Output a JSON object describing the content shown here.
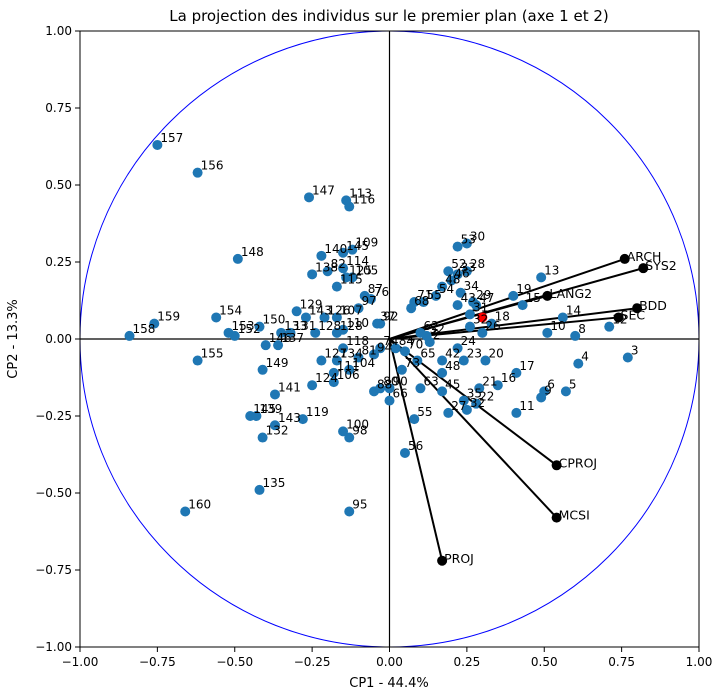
{
  "chart_data": {
    "type": "scatter",
    "title": "La projection des individus sur le premier plan (axe 1 et 2)",
    "xlabel": "CP1 - 44.4%",
    "ylabel": "CP2 - 13.3%",
    "xlim": [
      -1.0,
      1.0
    ],
    "ylim": [
      -1.0,
      1.0
    ],
    "xticks": [
      "−1.00",
      "−0.75",
      "−0.50",
      "−0.25",
      "0.00",
      "0.25",
      "0.50",
      "0.75",
      "1.00"
    ],
    "yticks": [
      "−1.00",
      "−0.75",
      "−0.50",
      "−0.25",
      "0.00",
      "0.25",
      "0.50",
      "0.75",
      "1.00"
    ],
    "tick_values": [
      -1.0,
      -0.75,
      -0.5,
      -0.25,
      0.0,
      0.25,
      0.5,
      0.75,
      1.0
    ],
    "grid": false,
    "circle": {
      "radius": 1.0,
      "color": "#0000ff"
    },
    "colors": {
      "points": "#1f77b4",
      "centroid": "#ff0000",
      "arrows": "#000000",
      "axes": "#000000"
    },
    "points": [
      {
        "label": "157",
        "x": -0.75,
        "y": 0.63
      },
      {
        "label": "156",
        "x": -0.62,
        "y": 0.54
      },
      {
        "label": "147",
        "x": -0.26,
        "y": 0.46
      },
      {
        "label": "113",
        "x": -0.14,
        "y": 0.45
      },
      {
        "label": "116",
        "x": -0.13,
        "y": 0.43
      },
      {
        "label": "148",
        "x": -0.49,
        "y": 0.26
      },
      {
        "label": "140",
        "x": -0.22,
        "y": 0.27
      },
      {
        "label": "145",
        "x": -0.15,
        "y": 0.28
      },
      {
        "label": "109",
        "x": -0.12,
        "y": 0.29
      },
      {
        "label": "138",
        "x": -0.25,
        "y": 0.21
      },
      {
        "label": "82",
        "x": -0.2,
        "y": 0.22
      },
      {
        "label": "114",
        "x": -0.15,
        "y": 0.23
      },
      {
        "label": "125",
        "x": -0.14,
        "y": 0.2
      },
      {
        "label": "105",
        "x": -0.12,
        "y": 0.2
      },
      {
        "label": "115",
        "x": -0.17,
        "y": 0.17
      },
      {
        "label": "87",
        "x": -0.08,
        "y": 0.14
      },
      {
        "label": "76",
        "x": -0.06,
        "y": 0.13
      },
      {
        "label": "97",
        "x": -0.1,
        "y": 0.1
      },
      {
        "label": "159",
        "x": -0.76,
        "y": 0.05
      },
      {
        "label": "158",
        "x": -0.84,
        "y": 0.01
      },
      {
        "label": "154",
        "x": -0.56,
        "y": 0.07
      },
      {
        "label": "153",
        "x": -0.52,
        "y": 0.02
      },
      {
        "label": "152",
        "x": -0.5,
        "y": 0.01
      },
      {
        "label": "150",
        "x": -0.42,
        "y": 0.04
      },
      {
        "label": "129",
        "x": -0.3,
        "y": 0.09
      },
      {
        "label": "133",
        "x": -0.35,
        "y": 0.02
      },
      {
        "label": "131",
        "x": -0.32,
        "y": 0.02
      },
      {
        "label": "143",
        "x": -0.27,
        "y": 0.07
      },
      {
        "label": "126",
        "x": -0.21,
        "y": 0.07
      },
      {
        "label": "128",
        "x": -0.24,
        "y": 0.02
      },
      {
        "label": "110",
        "x": -0.15,
        "y": 0.03
      },
      {
        "label": "107",
        "x": -0.17,
        "y": 0.07
      },
      {
        "label": "92",
        "x": -0.03,
        "y": 0.05
      },
      {
        "label": "146",
        "x": -0.4,
        "y": -0.02
      },
      {
        "label": "137",
        "x": -0.36,
        "y": -0.02
      },
      {
        "label": "155",
        "x": -0.62,
        "y": -0.07
      },
      {
        "label": "149",
        "x": -0.41,
        "y": -0.1
      },
      {
        "label": "128",
        "x": -0.17,
        "y": 0.02
      },
      {
        "label": "118",
        "x": -0.15,
        "y": -0.03
      },
      {
        "label": "127",
        "x": -0.22,
        "y": -0.07
      },
      {
        "label": "134",
        "x": -0.17,
        "y": -0.07
      },
      {
        "label": "81",
        "x": -0.1,
        "y": -0.06
      },
      {
        "label": "111",
        "x": -0.18,
        "y": -0.11
      },
      {
        "label": "104",
        "x": -0.13,
        "y": -0.1
      },
      {
        "label": "106",
        "x": -0.18,
        "y": -0.14
      },
      {
        "label": "124",
        "x": -0.25,
        "y": -0.15
      },
      {
        "label": "141",
        "x": -0.37,
        "y": -0.18
      },
      {
        "label": "145",
        "x": -0.45,
        "y": -0.25
      },
      {
        "label": "139",
        "x": -0.43,
        "y": -0.25
      },
      {
        "label": "143",
        "x": -0.37,
        "y": -0.28
      },
      {
        "label": "132",
        "x": -0.41,
        "y": -0.32
      },
      {
        "label": "119",
        "x": -0.28,
        "y": -0.26
      },
      {
        "label": "100",
        "x": -0.15,
        "y": -0.3
      },
      {
        "label": "98",
        "x": -0.13,
        "y": -0.32
      },
      {
        "label": "135",
        "x": -0.42,
        "y": -0.49
      },
      {
        "label": "160",
        "x": -0.66,
        "y": -0.56
      },
      {
        "label": "95",
        "x": -0.13,
        "y": -0.56
      },
      {
        "label": "88",
        "x": -0.05,
        "y": -0.17
      },
      {
        "label": "80",
        "x": -0.03,
        "y": -0.16
      },
      {
        "label": "90",
        "x": 0.0,
        "y": -0.16
      },
      {
        "label": "66",
        "x": 0.0,
        "y": -0.2
      },
      {
        "label": "55",
        "x": 0.08,
        "y": -0.26
      },
      {
        "label": "56",
        "x": 0.05,
        "y": -0.37
      },
      {
        "label": "63",
        "x": 0.1,
        "y": -0.16
      },
      {
        "label": "65",
        "x": 0.09,
        "y": -0.07
      },
      {
        "label": "73",
        "x": 0.04,
        "y": -0.1
      },
      {
        "label": "70",
        "x": 0.05,
        "y": -0.04
      },
      {
        "label": "53",
        "x": 0.22,
        "y": 0.3
      },
      {
        "label": "30",
        "x": 0.25,
        "y": 0.31
      },
      {
        "label": "52",
        "x": 0.19,
        "y": 0.22
      },
      {
        "label": "33",
        "x": 0.22,
        "y": 0.21
      },
      {
        "label": "28",
        "x": 0.25,
        "y": 0.22
      },
      {
        "label": "46",
        "x": 0.2,
        "y": 0.19
      },
      {
        "label": "48",
        "x": 0.17,
        "y": 0.17
      },
      {
        "label": "54",
        "x": 0.15,
        "y": 0.14
      },
      {
        "label": "34",
        "x": 0.23,
        "y": 0.15
      },
      {
        "label": "29",
        "x": 0.27,
        "y": 0.12
      },
      {
        "label": "19",
        "x": 0.4,
        "y": 0.14
      },
      {
        "label": "13",
        "x": 0.49,
        "y": 0.2
      },
      {
        "label": "15",
        "x": 0.43,
        "y": 0.11
      },
      {
        "label": "14",
        "x": 0.56,
        "y": 0.07
      },
      {
        "label": "10",
        "x": 0.51,
        "y": 0.02
      },
      {
        "label": "8",
        "x": 0.6,
        "y": 0.01
      },
      {
        "label": "12",
        "x": 0.71,
        "y": 0.04
      },
      {
        "label": "4",
        "x": 0.61,
        "y": -0.08
      },
      {
        "label": "3",
        "x": 0.77,
        "y": -0.06
      },
      {
        "label": "6",
        "x": 0.5,
        "y": -0.17
      },
      {
        "label": "9",
        "x": 0.49,
        "y": -0.19
      },
      {
        "label": "5",
        "x": 0.57,
        "y": -0.17
      },
      {
        "label": "17",
        "x": 0.41,
        "y": -0.11
      },
      {
        "label": "16",
        "x": 0.35,
        "y": -0.15
      },
      {
        "label": "21",
        "x": 0.29,
        "y": -0.16
      },
      {
        "label": "11",
        "x": 0.41,
        "y": -0.24
      },
      {
        "label": "22",
        "x": 0.28,
        "y": -0.21
      },
      {
        "label": "35",
        "x": 0.24,
        "y": -0.2
      },
      {
        "label": "32",
        "x": 0.25,
        "y": -0.23
      },
      {
        "label": "27",
        "x": 0.19,
        "y": -0.24
      },
      {
        "label": "45",
        "x": 0.17,
        "y": -0.17
      },
      {
        "label": "48",
        "x": 0.17,
        "y": -0.11
      },
      {
        "label": "42",
        "x": 0.17,
        "y": -0.07
      },
      {
        "label": "24",
        "x": 0.22,
        "y": -0.03
      },
      {
        "label": "23",
        "x": 0.24,
        "y": -0.07
      },
      {
        "label": "20",
        "x": 0.31,
        "y": -0.07
      },
      {
        "label": "26",
        "x": 0.3,
        "y": 0.02
      },
      {
        "label": "18",
        "x": 0.33,
        "y": 0.05
      },
      {
        "label": "32",
        "x": 0.26,
        "y": 0.04
      },
      {
        "label": "31",
        "x": 0.26,
        "y": 0.08
      },
      {
        "label": "47",
        "x": 0.28,
        "y": 0.11
      },
      {
        "label": "43",
        "x": 0.22,
        "y": 0.11
      },
      {
        "label": "2",
        "x": 0.13,
        "y": -0.01
      },
      {
        "label": "52",
        "x": 0.12,
        "y": 0.01
      },
      {
        "label": "62",
        "x": 0.1,
        "y": 0.02
      },
      {
        "label": "68",
        "x": 0.07,
        "y": 0.1
      },
      {
        "label": "71",
        "x": 0.08,
        "y": 0.12
      },
      {
        "label": "55",
        "x": 0.11,
        "y": 0.12
      },
      {
        "label": "84",
        "x": 0.02,
        "y": -0.03
      },
      {
        "label": "74",
        "x": -0.03,
        "y": -0.03
      },
      {
        "label": "37",
        "x": -0.04,
        "y": 0.05
      },
      {
        "label": "94",
        "x": -0.05,
        "y": -0.05
      }
    ],
    "centroid": {
      "x": 0.3,
      "y": 0.07
    },
    "variables": [
      {
        "label": "ARCH",
        "x": 0.76,
        "y": 0.26
      },
      {
        "label": "SYS2",
        "x": 0.82,
        "y": 0.23
      },
      {
        "label": "LANG2",
        "x": 0.51,
        "y": 0.14
      },
      {
        "label": "BDD",
        "x": 0.8,
        "y": 0.1
      },
      {
        "label": "SEC",
        "x": 0.74,
        "y": 0.07
      },
      {
        "label": "CPROJ",
        "x": 0.54,
        "y": -0.41
      },
      {
        "label": "MCSI",
        "x": 0.54,
        "y": -0.58
      },
      {
        "label": "PROJ",
        "x": 0.17,
        "y": -0.72
      }
    ]
  }
}
